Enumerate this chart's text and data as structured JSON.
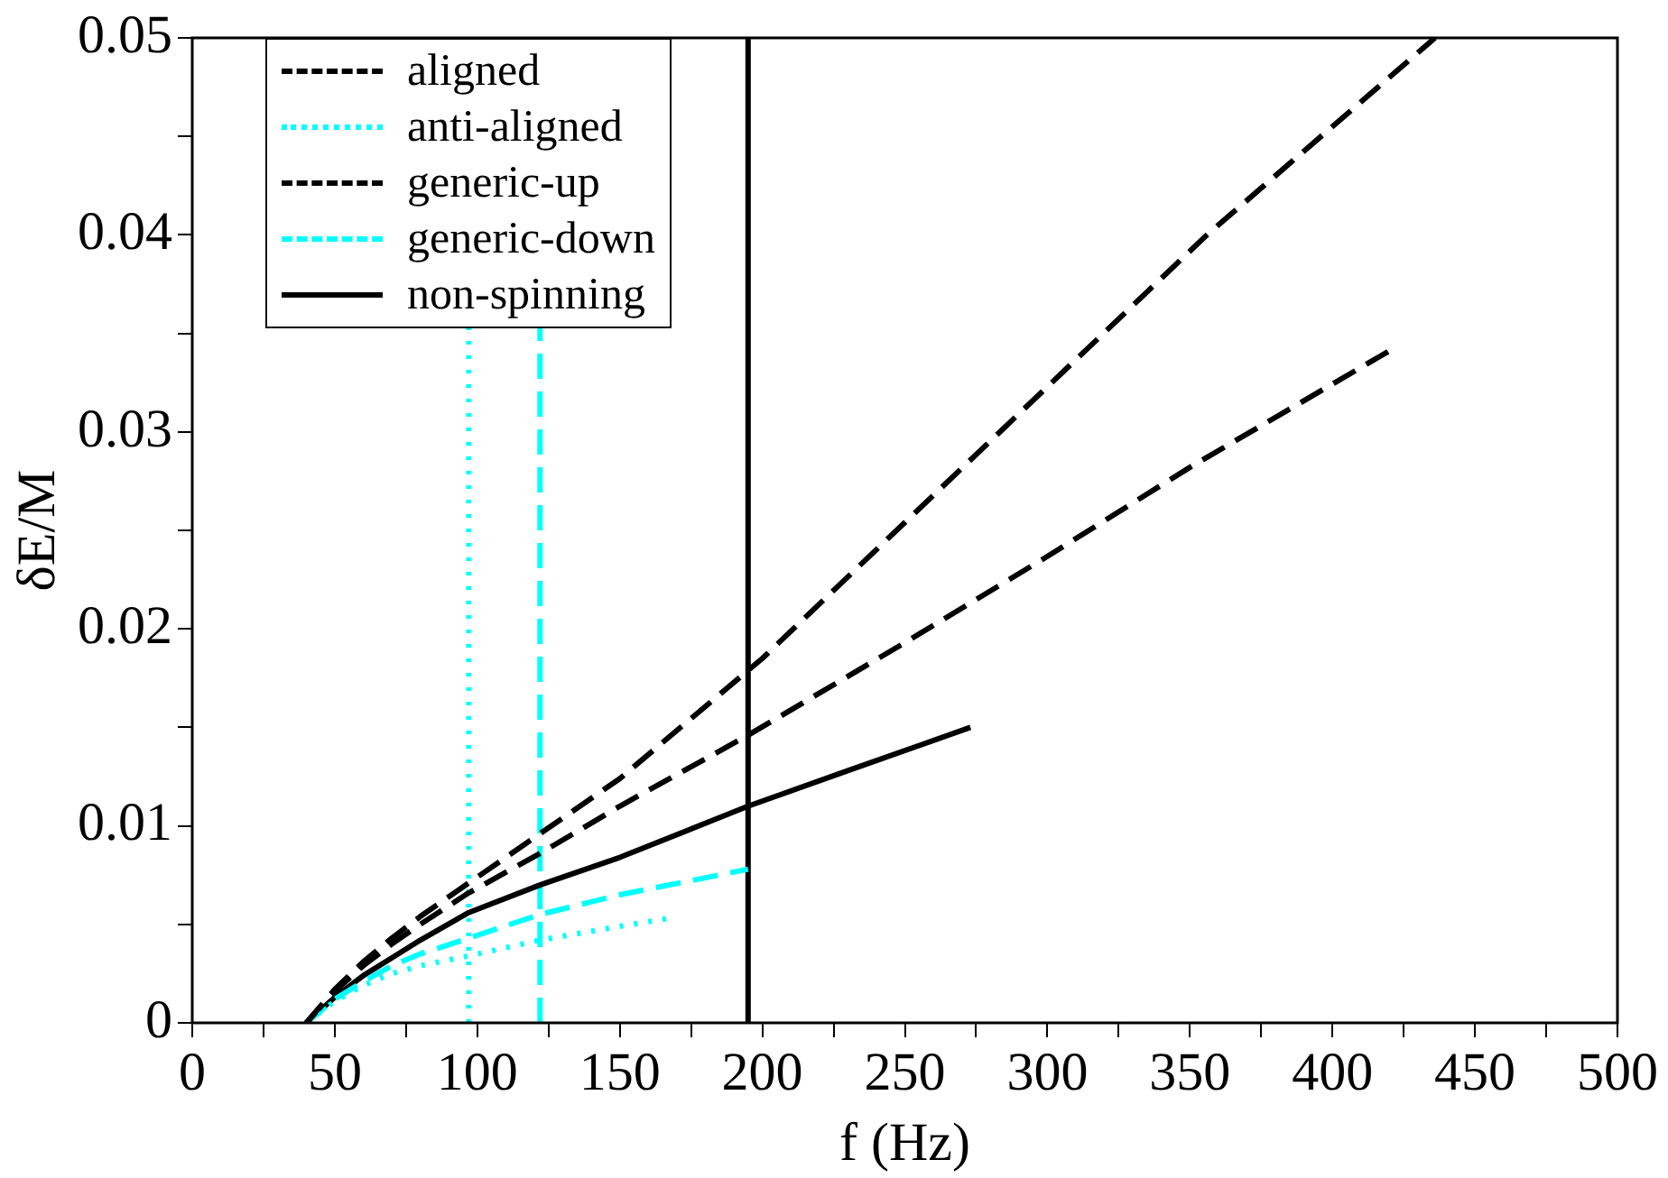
{
  "chart_data": {
    "type": "line",
    "xlabel": "f (Hz)",
    "ylabel": "δE/M",
    "xlim": [
      0,
      500
    ],
    "xticks": [
      0,
      {
        "value": 25,
        "label": null
      },
      50,
      {
        "value": 75,
        "label": null
      },
      100,
      {
        "value": 125,
        "label": null
      },
      150,
      {
        "value": 175,
        "label": null
      },
      200,
      {
        "value": 225,
        "label": null
      },
      250,
      {
        "value": 275,
        "label": null
      },
      300,
      {
        "value": 325,
        "label": null
      },
      350,
      {
        "value": 375,
        "label": null
      },
      400,
      {
        "value": 425,
        "label": null
      },
      450,
      {
        "value": 475,
        "label": null
      },
      500
    ],
    "ylim": [
      0,
      0.05
    ],
    "yticks": [
      0,
      {
        "value": 0.005,
        "label": null
      },
      0.01,
      {
        "value": 0.015,
        "label": null
      },
      0.02,
      {
        "value": 0.025,
        "label": null
      },
      0.03,
      {
        "value": 0.035,
        "label": null
      },
      0.04,
      {
        "value": 0.045,
        "label": null
      },
      0.05
    ],
    "grid": false,
    "legend": "top left",
    "marker": "none",
    "series": [
      {
        "name": "aligned",
        "color": "#000000",
        "line_style": "dashed",
        "x": [
          40,
          50,
          60,
          70,
          80,
          97,
          125,
          150,
          200,
          250,
          287,
          356,
          436
        ],
        "values": [
          0,
          0.0017,
          0.0031,
          0.0043,
          0.0054,
          0.0071,
          0.0099,
          0.0124,
          0.0185,
          0.0254,
          0.0305,
          0.04,
          0.05
        ]
      },
      {
        "name": "anti-aligned",
        "color": "#00ffff",
        "line_style": "dotted",
        "x": [
          40,
          50,
          60,
          70,
          80,
          97,
          122,
          150,
          167
        ],
        "values": [
          0,
          0.0011,
          0.0019,
          0.0025,
          0.0029,
          0.0034,
          0.0042,
          0.0049,
          0.0053
        ]
      },
      {
        "name": "generic-up",
        "color": "#000000",
        "line_style": "dashed",
        "x": [
          40,
          50,
          60,
          70,
          80,
          97,
          122,
          150,
          195,
          250,
          298,
          350,
          421
        ],
        "values": [
          0,
          0.0016,
          0.0029,
          0.004,
          0.005,
          0.0066,
          0.0086,
          0.011,
          0.0146,
          0.0193,
          0.0235,
          0.0282,
          0.0342
        ]
      },
      {
        "name": "generic-down",
        "color": "#00ffff",
        "line_style": "dashed",
        "x": [
          40,
          50,
          60,
          70,
          80,
          97,
          122,
          150,
          195
        ],
        "values": [
          0,
          0.0012,
          0.0021,
          0.0029,
          0.0035,
          0.0043,
          0.0055,
          0.0065,
          0.0078
        ]
      },
      {
        "name": "non-spinning",
        "color": "#000000",
        "line_style": "solid",
        "x": [
          40,
          50,
          60,
          70,
          80,
          97,
          122,
          150,
          195,
          230,
          273
        ],
        "values": [
          0,
          0.0013,
          0.0024,
          0.0033,
          0.0042,
          0.0056,
          0.007,
          0.0084,
          0.011,
          0.0128,
          0.015
        ]
      }
    ],
    "ref_lines": [
      {
        "axis": "x",
        "value": 97,
        "color": "#00ffff",
        "line_style": "dotted"
      },
      {
        "axis": "x",
        "value": 122,
        "color": "#00ffff",
        "line_style": "dashed"
      },
      {
        "axis": "x",
        "value": 195,
        "color": "#000000",
        "line_style": "solid"
      }
    ]
  }
}
